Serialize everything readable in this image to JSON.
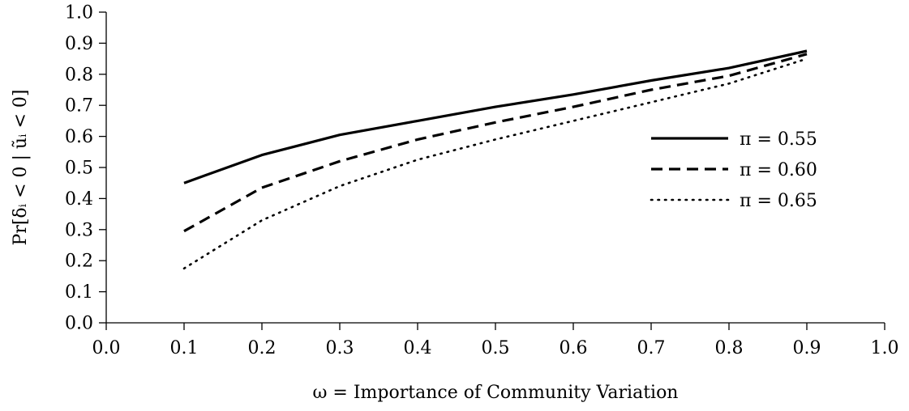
{
  "chart_data": {
    "type": "line",
    "xlabel": "ω = Importance of Community Variation",
    "ylabel": "Pr[δᵢ < 0 | ũᵢ < 0]",
    "xlim": [
      0.0,
      1.0
    ],
    "ylim": [
      0.0,
      1.0
    ],
    "xticks": [
      "0.0",
      "0.1",
      "0.2",
      "0.3",
      "0.4",
      "0.5",
      "0.6",
      "0.7",
      "0.8",
      "0.9",
      "1.0"
    ],
    "yticks": [
      "0.0",
      "0.1",
      "0.2",
      "0.3",
      "0.4",
      "0.5",
      "0.6",
      "0.7",
      "0.8",
      "0.9",
      "1.0"
    ],
    "grid": false,
    "legend_position": "right",
    "x": [
      0.1,
      0.2,
      0.3,
      0.4,
      0.5,
      0.6,
      0.7,
      0.8,
      0.9
    ],
    "series": [
      {
        "name": "π = 0.55",
        "style": "solid",
        "values": [
          0.45,
          0.54,
          0.605,
          0.65,
          0.695,
          0.735,
          0.78,
          0.82,
          0.875
        ]
      },
      {
        "name": "π = 0.60",
        "style": "dashed",
        "values": [
          0.295,
          0.435,
          0.52,
          0.59,
          0.645,
          0.695,
          0.75,
          0.795,
          0.865
        ]
      },
      {
        "name": "π = 0.65",
        "style": "dotted",
        "values": [
          0.175,
          0.33,
          0.44,
          0.525,
          0.59,
          0.65,
          0.71,
          0.77,
          0.85
        ]
      }
    ]
  }
}
